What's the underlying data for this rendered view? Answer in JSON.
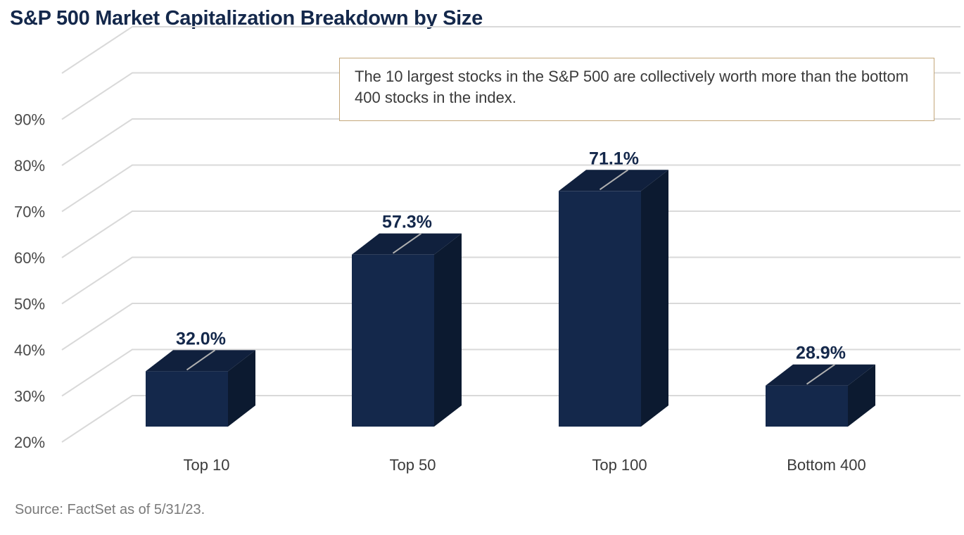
{
  "colors": {
    "title": "#14284b",
    "bar_front": "#14284b",
    "bar_top": "#10203d",
    "bar_side": "#0c1a30",
    "callout_border": "#c4a77a",
    "grid": "#d9d9d9"
  },
  "chart_data": {
    "type": "bar",
    "title": "S&P 500 Market Capitalization Breakdown by Size",
    "categories": [
      "Top 10",
      "Top 50",
      "Top 100",
      "Bottom 400"
    ],
    "values": [
      32.0,
      57.3,
      71.1,
      28.9
    ],
    "data_labels": [
      "32.0%",
      "57.3%",
      "71.1%",
      "28.9%"
    ],
    "ylim": [
      20,
      100
    ],
    "yticks": [
      20,
      30,
      40,
      50,
      60,
      70,
      80,
      90
    ],
    "ytick_labels": [
      "20%",
      "30%",
      "40%",
      "50%",
      "60%",
      "70%",
      "80%",
      "90%"
    ],
    "xlabel": "",
    "ylabel": "",
    "grid": true,
    "style": "3d",
    "annotation": "The 10 largest stocks in the S&P 500 are collectively worth more than the bottom 400 stocks in the index.",
    "source": "Source: FactSet as of 5/31/23."
  }
}
